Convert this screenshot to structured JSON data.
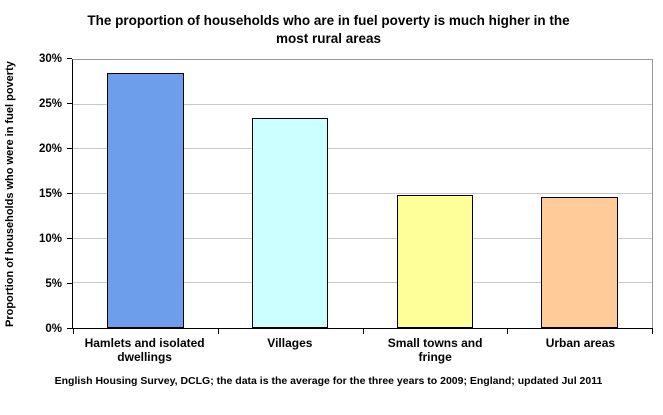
{
  "source_note": "English Housing Survey, DCLG; the data is the average for the three years to 2009; England; updated Jul 2011",
  "chart_data": {
    "type": "bar",
    "title": "The proportion of households who are in fuel poverty is much higher in the most rural areas",
    "ylabel": "Proportion of households who were in fuel poverty",
    "xlabel": "",
    "categories": [
      "Hamlets and isolated dwellings",
      "Villages",
      "Small towns and fringe",
      "Urban areas"
    ],
    "values": [
      28.6,
      23.5,
      14.9,
      14.7
    ],
    "colors": [
      "#6d9eeb",
      "#ccffff",
      "#ffff99",
      "#ffcc99"
    ],
    "ylim": [
      0,
      30
    ],
    "yticks": [
      0,
      5,
      10,
      15,
      20,
      25,
      30
    ],
    "ytick_suffix": "%",
    "grid": true,
    "legend": false
  }
}
